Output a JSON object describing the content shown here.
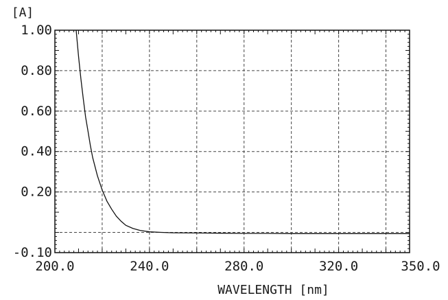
{
  "chart_data": {
    "type": "line",
    "title": "",
    "xlabel": "WAVELENGTH [nm]",
    "ylabel": "[A]",
    "xlim": [
      200.0,
      350.0
    ],
    "ylim": [
      -0.1,
      1.0
    ],
    "x_tick_labels": [
      "200.0",
      "240.0",
      "280.0",
      "320.0",
      "350.0"
    ],
    "y_tick_labels": [
      "1.00",
      "0.80",
      "0.60",
      "0.40",
      "0.20",
      "-0.10"
    ],
    "grid": true,
    "series": [
      {
        "x": [
          209,
          210,
          211,
          212,
          213,
          214,
          215,
          216,
          218,
          220,
          222,
          224,
          226,
          228,
          230,
          233,
          236,
          240,
          245,
          250,
          260,
          270,
          280,
          290,
          300,
          320,
          340,
          350
        ],
        "y": [
          1.0,
          0.87,
          0.76,
          0.66,
          0.57,
          0.5,
          0.43,
          0.37,
          0.28,
          0.21,
          0.155,
          0.115,
          0.08,
          0.055,
          0.035,
          0.02,
          0.01,
          0.003,
          0.0,
          -0.002,
          -0.003,
          -0.004,
          -0.005,
          -0.005,
          -0.006,
          -0.006,
          -0.006,
          -0.006
        ]
      }
    ]
  }
}
